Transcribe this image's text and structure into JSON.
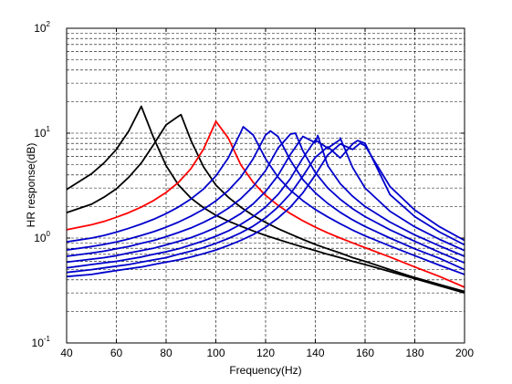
{
  "chart_data": {
    "type": "line",
    "title": "",
    "xlabel": "Frequency(Hz)",
    "ylabel": "HR response(dB)",
    "xlim": [
      40,
      200
    ],
    "ylim": [
      0.1,
      100
    ],
    "yscale": "log",
    "grid": true,
    "grid_style": "dashed",
    "x_ticks": [
      40,
      60,
      80,
      100,
      120,
      140,
      160,
      180,
      200
    ],
    "y_ticks": [
      {
        "base": "10",
        "exp": "-1",
        "value": 0.1
      },
      {
        "base": "10",
        "exp": "0",
        "value": 1
      },
      {
        "base": "10",
        "exp": "1",
        "value": 10
      },
      {
        "base": "10",
        "exp": "2",
        "value": 100
      }
    ],
    "x": [
      40,
      50,
      55,
      60,
      65,
      70,
      75,
      80,
      85,
      90,
      95,
      100,
      105,
      110,
      115,
      120,
      125,
      130,
      135,
      140,
      145,
      150,
      155,
      160,
      170,
      180,
      190,
      200
    ],
    "series": [
      {
        "color": "#000000",
        "peak": [
          70,
          18
        ],
        "values": [
          2.9,
          4.1,
          5.2,
          7.0,
          10.5,
          18.0,
          9.0,
          4.9,
          3.2,
          2.4,
          1.95,
          1.65,
          1.45,
          1.3,
          1.17,
          1.06,
          0.97,
          0.89,
          0.82,
          0.76,
          0.7,
          0.65,
          0.6,
          0.56,
          0.48,
          0.41,
          0.35,
          0.3
        ]
      },
      {
        "color": "#000000",
        "peak": [
          86,
          15
        ],
        "values": [
          1.75,
          2.1,
          2.45,
          2.95,
          3.8,
          5.2,
          7.8,
          12.0,
          14.5,
          8.5,
          4.8,
          3.2,
          2.45,
          1.97,
          1.64,
          1.41,
          1.23,
          1.09,
          0.97,
          0.87,
          0.79,
          0.72,
          0.65,
          0.6,
          0.5,
          0.42,
          0.36,
          0.31
        ]
      },
      {
        "color": "#ff0000",
        "peak": [
          100,
          13
        ],
        "values": [
          1.2,
          1.34,
          1.44,
          1.58,
          1.75,
          1.97,
          2.28,
          2.72,
          3.4,
          4.6,
          7.0,
          12.9,
          9.0,
          5.0,
          3.4,
          2.55,
          2.05,
          1.71,
          1.46,
          1.27,
          1.12,
          1.0,
          0.9,
          0.81,
          0.66,
          0.53,
          0.43,
          0.34
        ]
      },
      {
        "color": "#0000cc",
        "peak": [
          111,
          11.5
        ],
        "values": [
          0.92,
          1.0,
          1.06,
          1.14,
          1.24,
          1.36,
          1.51,
          1.71,
          1.98,
          2.36,
          2.93,
          3.9,
          5.8,
          10.2,
          9.6,
          5.7,
          3.8,
          2.85,
          2.27,
          1.87,
          1.59,
          1.37,
          1.19,
          1.05,
          0.84,
          0.68,
          0.55,
          0.45
        ]
      },
      {
        "color": "#0000cc",
        "peak": [
          122,
          10.5
        ],
        "values": [
          0.77,
          0.83,
          0.87,
          0.92,
          0.98,
          1.06,
          1.15,
          1.27,
          1.42,
          1.62,
          1.88,
          2.26,
          2.84,
          3.8,
          5.7,
          9.6,
          9.3,
          5.5,
          3.6,
          2.7,
          2.14,
          1.76,
          1.49,
          1.29,
          1.0,
          0.79,
          0.64,
          0.5
        ]
      },
      {
        "color": "#0000cc",
        "peak": [
          132,
          10
        ],
        "values": [
          0.67,
          0.72,
          0.75,
          0.79,
          0.83,
          0.89,
          0.95,
          1.03,
          1.13,
          1.25,
          1.41,
          1.62,
          1.92,
          2.37,
          3.1,
          4.4,
          7.2,
          9.8,
          6.8,
          4.2,
          3.0,
          2.34,
          1.9,
          1.6,
          1.2,
          0.93,
          0.73,
          0.58
        ]
      },
      {
        "color": "#0000cc",
        "peak": [
          141,
          9.5
        ],
        "values": [
          0.59,
          0.63,
          0.65,
          0.68,
          0.72,
          0.76,
          0.8,
          0.86,
          0.93,
          1.01,
          1.12,
          1.26,
          1.45,
          1.71,
          2.12,
          2.78,
          3.95,
          6.3,
          9.3,
          8.1,
          4.9,
          3.3,
          2.5,
          2.0,
          1.42,
          1.07,
          0.84,
          0.67
        ]
      },
      {
        "color": "#0000cc",
        "peak": [
          150,
          9
        ],
        "values": [
          0.52,
          0.56,
          0.58,
          0.6,
          0.63,
          0.66,
          0.7,
          0.74,
          0.79,
          0.86,
          0.94,
          1.04,
          1.17,
          1.35,
          1.6,
          1.98,
          2.6,
          3.7,
          5.8,
          8.6,
          7.2,
          8.7,
          4.7,
          3.0,
          1.8,
          1.28,
          0.97,
          0.76
        ]
      },
      {
        "color": "#0000cc",
        "peak": [
          157,
          8.5
        ],
        "values": [
          0.47,
          0.5,
          0.52,
          0.54,
          0.56,
          0.59,
          0.62,
          0.65,
          0.7,
          0.75,
          0.81,
          0.89,
          0.99,
          1.12,
          1.3,
          1.56,
          1.97,
          2.65,
          3.9,
          5.9,
          7.4,
          5.8,
          7.9,
          8.0,
          2.6,
          1.6,
          1.14,
          0.86
        ]
      },
      {
        "color": "#0000cc",
        "peak": [
          158,
          8
        ],
        "values": [
          0.43,
          0.45,
          0.47,
          0.49,
          0.51,
          0.53,
          0.56,
          0.59,
          0.62,
          0.66,
          0.71,
          0.77,
          0.85,
          0.95,
          1.08,
          1.27,
          1.55,
          1.98,
          2.7,
          4.0,
          6.2,
          7.9,
          7.0,
          7.6,
          3.1,
          1.85,
          1.28,
          0.95
        ]
      }
    ]
  }
}
